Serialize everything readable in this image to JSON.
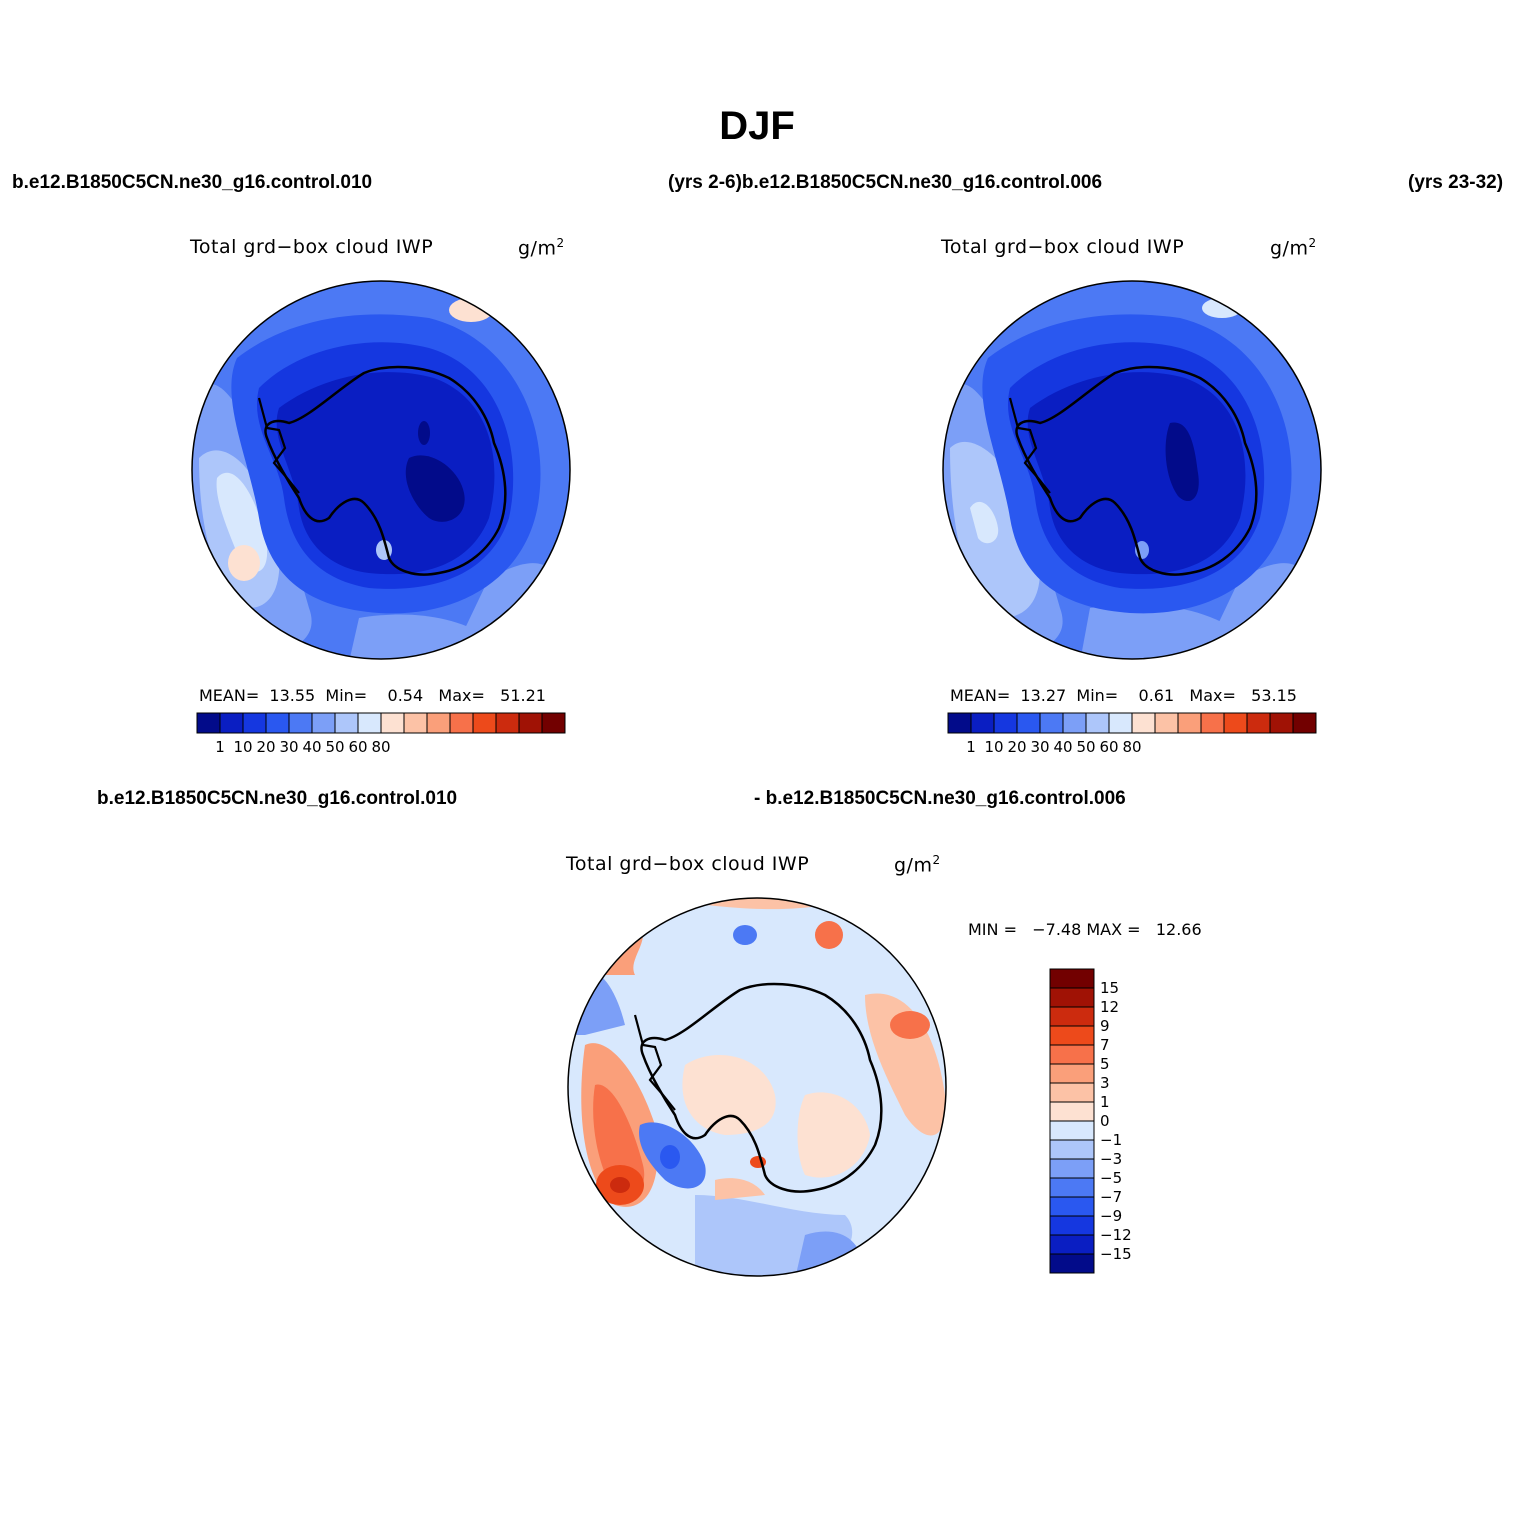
{
  "title": "DJF",
  "top_left_case": "b.e12.B1850C5CN.ne30_g16.control.010",
  "top_middle_case": "(yrs 2-6)b.e12.B1850C5CN.ne30_g16.control.006",
  "top_right_case": "(yrs 23-32)",
  "diff_case_left": "b.e12.B1850C5CN.ne30_g16.control.010",
  "diff_case_right": "- b.e12.B1850C5CN.ne30_g16.control.006",
  "variable": "Total grd−box cloud IWP",
  "units_base": "g/m",
  "units_exp": "2",
  "panels": [
    {
      "mean_label": "MEAN=",
      "mean": "13.55",
      "min_label": "Min=",
      "min": "0.54",
      "max_label": "Max=",
      "max": "51.21"
    },
    {
      "mean_label": "MEAN=",
      "mean": "13.27",
      "min_label": "Min=",
      "min": "0.61",
      "max_label": "Max=",
      "max": "53.15"
    }
  ],
  "diff_stats": {
    "min_label": "MIN =",
    "min": "−7.48",
    "max_label": "MAX =",
    "max": "12.66"
  },
  "colorbar_h": {
    "colors": [
      "#020b8a",
      "#0a1ec2",
      "#1537e0",
      "#2a58f0",
      "#4c79f4",
      "#7c9ff7",
      "#adc6fa",
      "#d8e8fd",
      "#fde1d2",
      "#fcc2a6",
      "#fa9f7a",
      "#f7714a",
      "#ed4a1b",
      "#cc2b0e",
      "#a01205",
      "#720000"
    ],
    "labels": [
      "1",
      "10",
      "20",
      "30",
      "40",
      "50",
      "60",
      "80"
    ]
  },
  "colorbar_v": {
    "colors": [
      "#720000",
      "#a01205",
      "#cc2b0e",
      "#ed4a1b",
      "#f7714a",
      "#fa9f7a",
      "#fcc2a6",
      "#fde1d2",
      "#d8e8fd",
      "#adc6fa",
      "#7c9ff7",
      "#4c79f4",
      "#2a58f0",
      "#1537e0",
      "#0a1ec2",
      "#020b8a"
    ],
    "labels": [
      "15",
      "12",
      "9",
      "7",
      "5",
      "3",
      "1",
      "0",
      "−1",
      "−3",
      "−5",
      "−7",
      "−9",
      "−12",
      "−15"
    ]
  }
}
